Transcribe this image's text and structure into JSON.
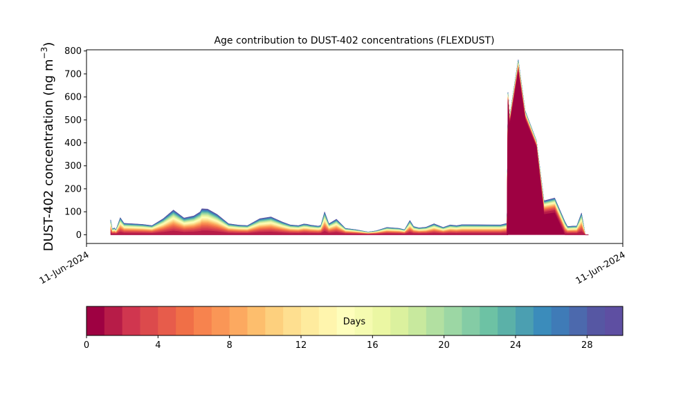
{
  "chart_data": [
    {
      "type": "area",
      "stacked": true,
      "title": "Age contribution to DUST-402 concentrations (FLEXDUST)",
      "ylabel": "DUST-402 concentration (ng m",
      "ylabel_superscript": "−3",
      "ylabel_suffix": ")",
      "ylim": [
        -38,
        805
      ],
      "y_ticks": [
        0,
        100,
        200,
        300,
        400,
        500,
        600,
        700,
        800
      ],
      "x_tick_labels": [
        "11-Jun-2024",
        "11-Jun-2024"
      ],
      "xlim": [
        0,
        1
      ],
      "grid": false,
      "layers": 30,
      "x": [
        0.045,
        0.048,
        0.052,
        0.055,
        0.06,
        0.063,
        0.07,
        0.085,
        0.105,
        0.122,
        0.143,
        0.162,
        0.182,
        0.2,
        0.212,
        0.215,
        0.226,
        0.244,
        0.265,
        0.284,
        0.3,
        0.323,
        0.344,
        0.366,
        0.38,
        0.395,
        0.405,
        0.411,
        0.418,
        0.425,
        0.432,
        0.437,
        0.444,
        0.452,
        0.466,
        0.483,
        0.503,
        0.525,
        0.54,
        0.56,
        0.583,
        0.593,
        0.603,
        0.61,
        0.62,
        0.633,
        0.648,
        0.665,
        0.678,
        0.69,
        0.7,
        0.772,
        0.784,
        0.786,
        0.784,
        0.786,
        0.789,
        0.805,
        0.818,
        0.839,
        0.853,
        0.873,
        0.892,
        0.897,
        0.908,
        0.914,
        0.923,
        0.93,
        0.936
      ],
      "total": [
        65,
        25,
        30,
        22,
        55,
        75,
        50,
        48,
        45,
        40,
        70,
        108,
        73,
        82,
        100,
        113,
        112,
        88,
        48,
        42,
        40,
        70,
        78,
        55,
        43,
        40,
        47,
        46,
        42,
        40,
        38,
        41,
        100,
        48,
        68,
        28,
        22,
        12,
        17,
        32,
        28,
        22,
        63,
        36,
        30,
        33,
        48,
        32,
        43,
        40,
        44,
        43,
        50,
        40,
        39,
        620,
        515,
        762,
        540,
        410,
        148,
        160,
        58,
        36,
        38,
        38,
        95,
        0,
        0
      ],
      "young_base": [
        0,
        0,
        0,
        0,
        0,
        0,
        0,
        0,
        0,
        0,
        0,
        0,
        0,
        0,
        0,
        0,
        0,
        0,
        0,
        0,
        0,
        0,
        0,
        0,
        0,
        0,
        0,
        0,
        0,
        0,
        0,
        0,
        0,
        0,
        0,
        0,
        0,
        0,
        0,
        0,
        0,
        0,
        0,
        0,
        0,
        0,
        0,
        0,
        0,
        0,
        0,
        0,
        0,
        0,
        0,
        0,
        0,
        0,
        0,
        0,
        0,
        0,
        0,
        0,
        0,
        0,
        0,
        0,
        0
      ],
      "colorbar": {
        "label": "Days",
        "min": 0,
        "max": 30,
        "ticks": [
          0,
          4,
          8,
          12,
          16,
          20,
          24,
          28
        ],
        "colors": [
          "#9e0142",
          "#b71c48",
          "#d0364f",
          "#dc4a4c",
          "#e75c4b",
          "#f06f47",
          "#f7834e",
          "#fa9656",
          "#fca960",
          "#fdbe6d",
          "#fdd07e",
          "#fedf90",
          "#feeb9e",
          "#fff5ad",
          "#fefebc",
          "#f5fbb0",
          "#ebf7a3",
          "#dbf19e",
          "#c8e99e",
          "#b2e0a1",
          "#9cd7a4",
          "#84cca5",
          "#6dc2a4",
          "#5bb1a8",
          "#4b9fb1",
          "#3b8cbb",
          "#3f7bb7",
          "#4c69ad",
          "#5657a3",
          "#5e4fa2"
        ]
      }
    }
  ]
}
